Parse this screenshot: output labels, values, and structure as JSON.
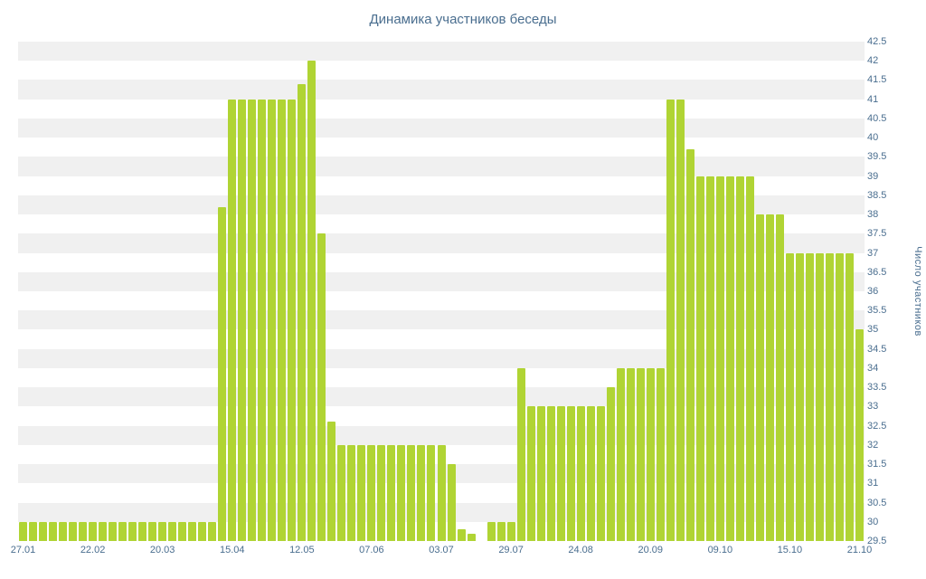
{
  "colors": {
    "background": "#ffffff",
    "bar": "#b0d434",
    "stripe": "#f0f0f0",
    "axis_text": "#4a6e8f",
    "title_text": "#4a6e8f"
  },
  "chart_data": {
    "type": "bar",
    "title": "Динамика участников беседы",
    "ylabel": "Число участников",
    "xlabel": "",
    "ylim": [
      29.5,
      42.5
    ],
    "ytick_step": 0.5,
    "grid": "alternating horizontal bands every 0.5 units",
    "legend": "none",
    "y_tick_labels": [
      "42.5",
      "42",
      "41.5",
      "41",
      "40.5",
      "40",
      "39.5",
      "39",
      "38.5",
      "38",
      "37.5",
      "37",
      "36.5",
      "36",
      "35.5",
      "35",
      "34.5",
      "34",
      "33.5",
      "33",
      "32.5",
      "32",
      "31.5",
      "31",
      "30.5",
      "30",
      "29.5"
    ],
    "x_tick_labels": [
      "27.01",
      "22.02",
      "20.03",
      "15.04",
      "12.05",
      "07.06",
      "03.07",
      "29.07",
      "24.08",
      "20.09",
      "09.10",
      "15.10",
      "21.10"
    ],
    "x_tick_positions": [
      0,
      7,
      14,
      21,
      28,
      35,
      42,
      49,
      56,
      63,
      70,
      77,
      84
    ],
    "values": [
      30,
      30,
      30,
      30,
      30,
      30,
      30,
      30,
      30,
      30,
      30,
      30,
      30,
      30,
      30,
      30,
      30,
      30,
      30,
      30,
      38.2,
      41,
      41,
      41,
      41,
      41,
      41,
      41,
      41.4,
      42,
      37.5,
      32.6,
      32,
      32,
      32,
      32,
      32,
      32,
      32,
      32,
      32,
      32,
      32,
      31.5,
      29.8,
      29.7,
      29.5,
      30,
      30,
      30,
      34,
      33,
      33,
      33,
      33,
      33,
      33,
      33,
      33,
      33.5,
      34,
      34,
      34,
      34,
      34,
      41,
      41,
      39.7,
      39,
      39,
      39,
      39,
      39,
      39,
      38,
      38,
      38,
      37,
      37,
      37,
      37,
      37,
      37,
      37,
      35
    ]
  }
}
